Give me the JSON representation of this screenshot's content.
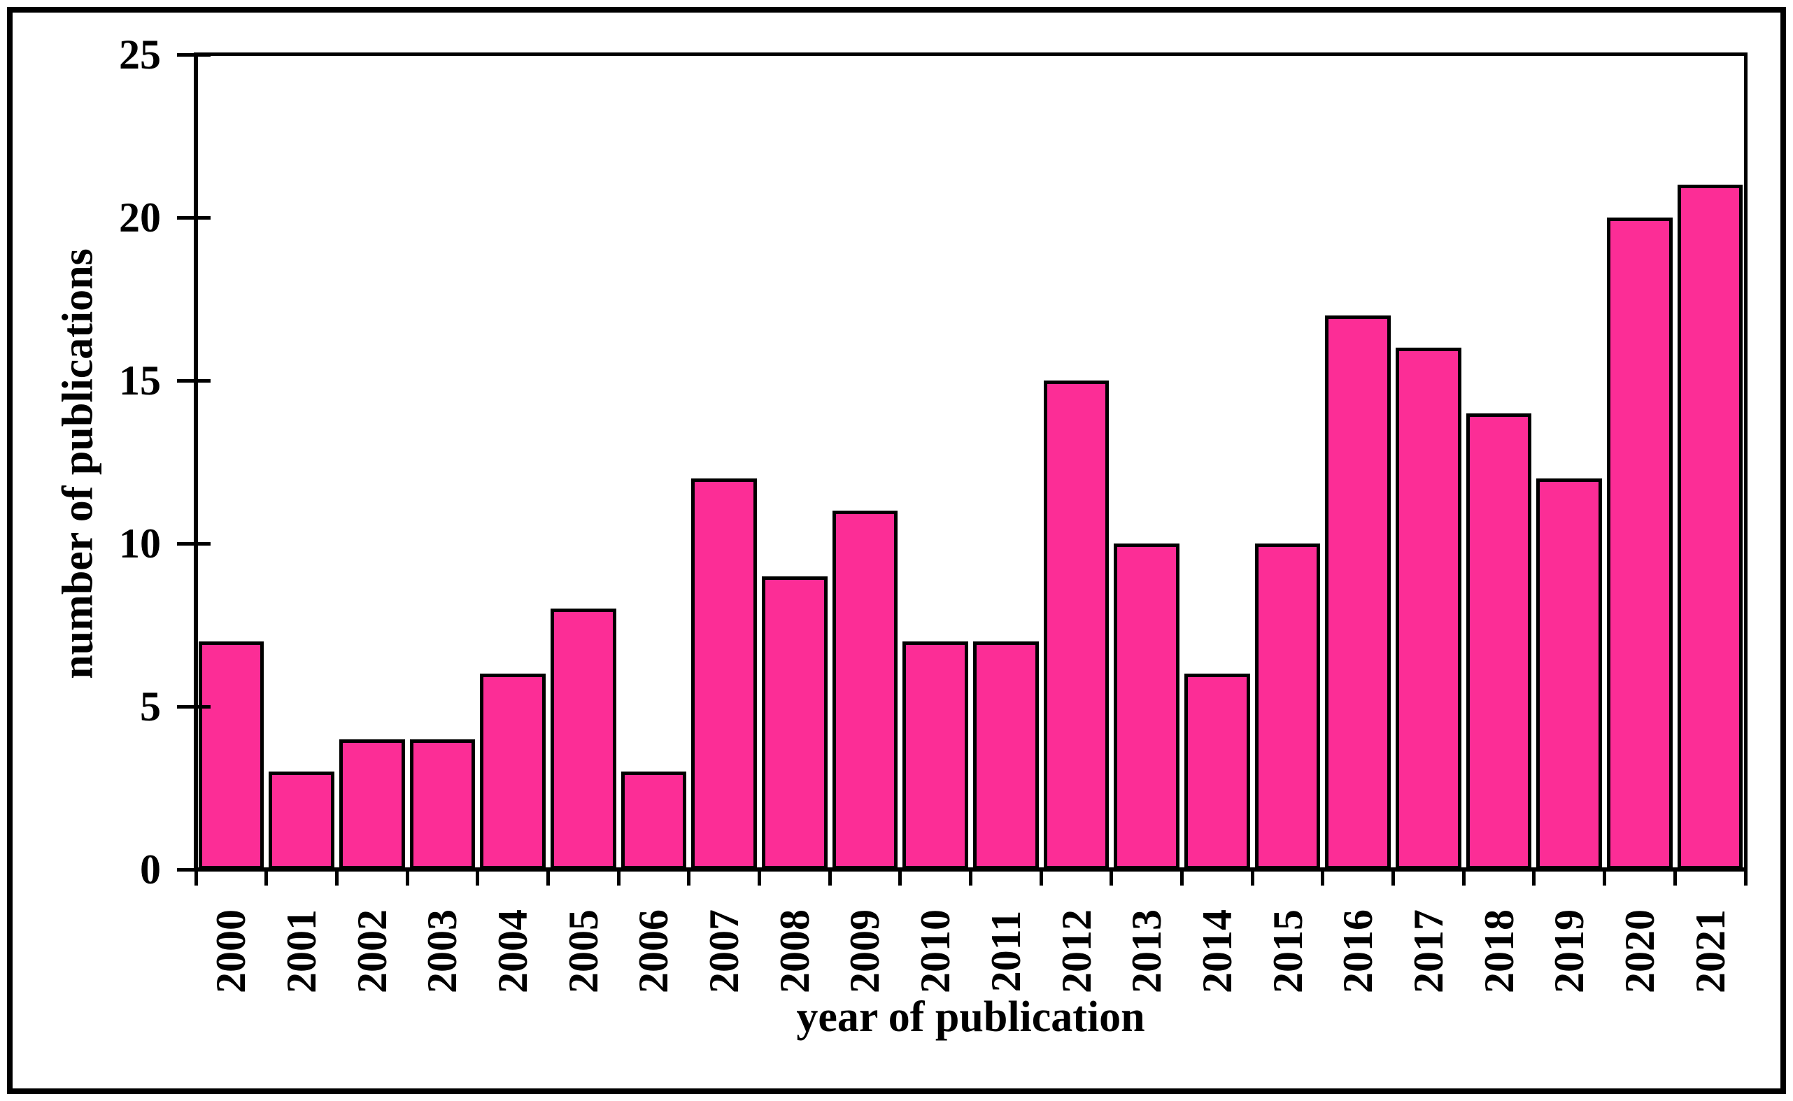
{
  "chart_data": {
    "type": "bar",
    "title": "",
    "categories": [
      "2000",
      "2001",
      "2002",
      "2003",
      "2004",
      "2005",
      "2006",
      "2007",
      "2008",
      "2009",
      "2010",
      "2011",
      "2012",
      "2013",
      "2014",
      "2015",
      "2016",
      "2017",
      "2018",
      "2019",
      "2020",
      "2021"
    ],
    "values": [
      7,
      3,
      4,
      4,
      6,
      8,
      3,
      12,
      9,
      11,
      7,
      7,
      15,
      10,
      6,
      10,
      17,
      16,
      14,
      12,
      20,
      21
    ],
    "xlabel": "year of publication",
    "ylabel": "number of publications",
    "ylim": [
      0,
      25
    ],
    "yticks": [
      0,
      5,
      10,
      15,
      20,
      25
    ],
    "grid": false,
    "legend": false,
    "bar_color": "#FC2D96",
    "bar_border_color": "#000000",
    "axis_color": "#000000"
  }
}
